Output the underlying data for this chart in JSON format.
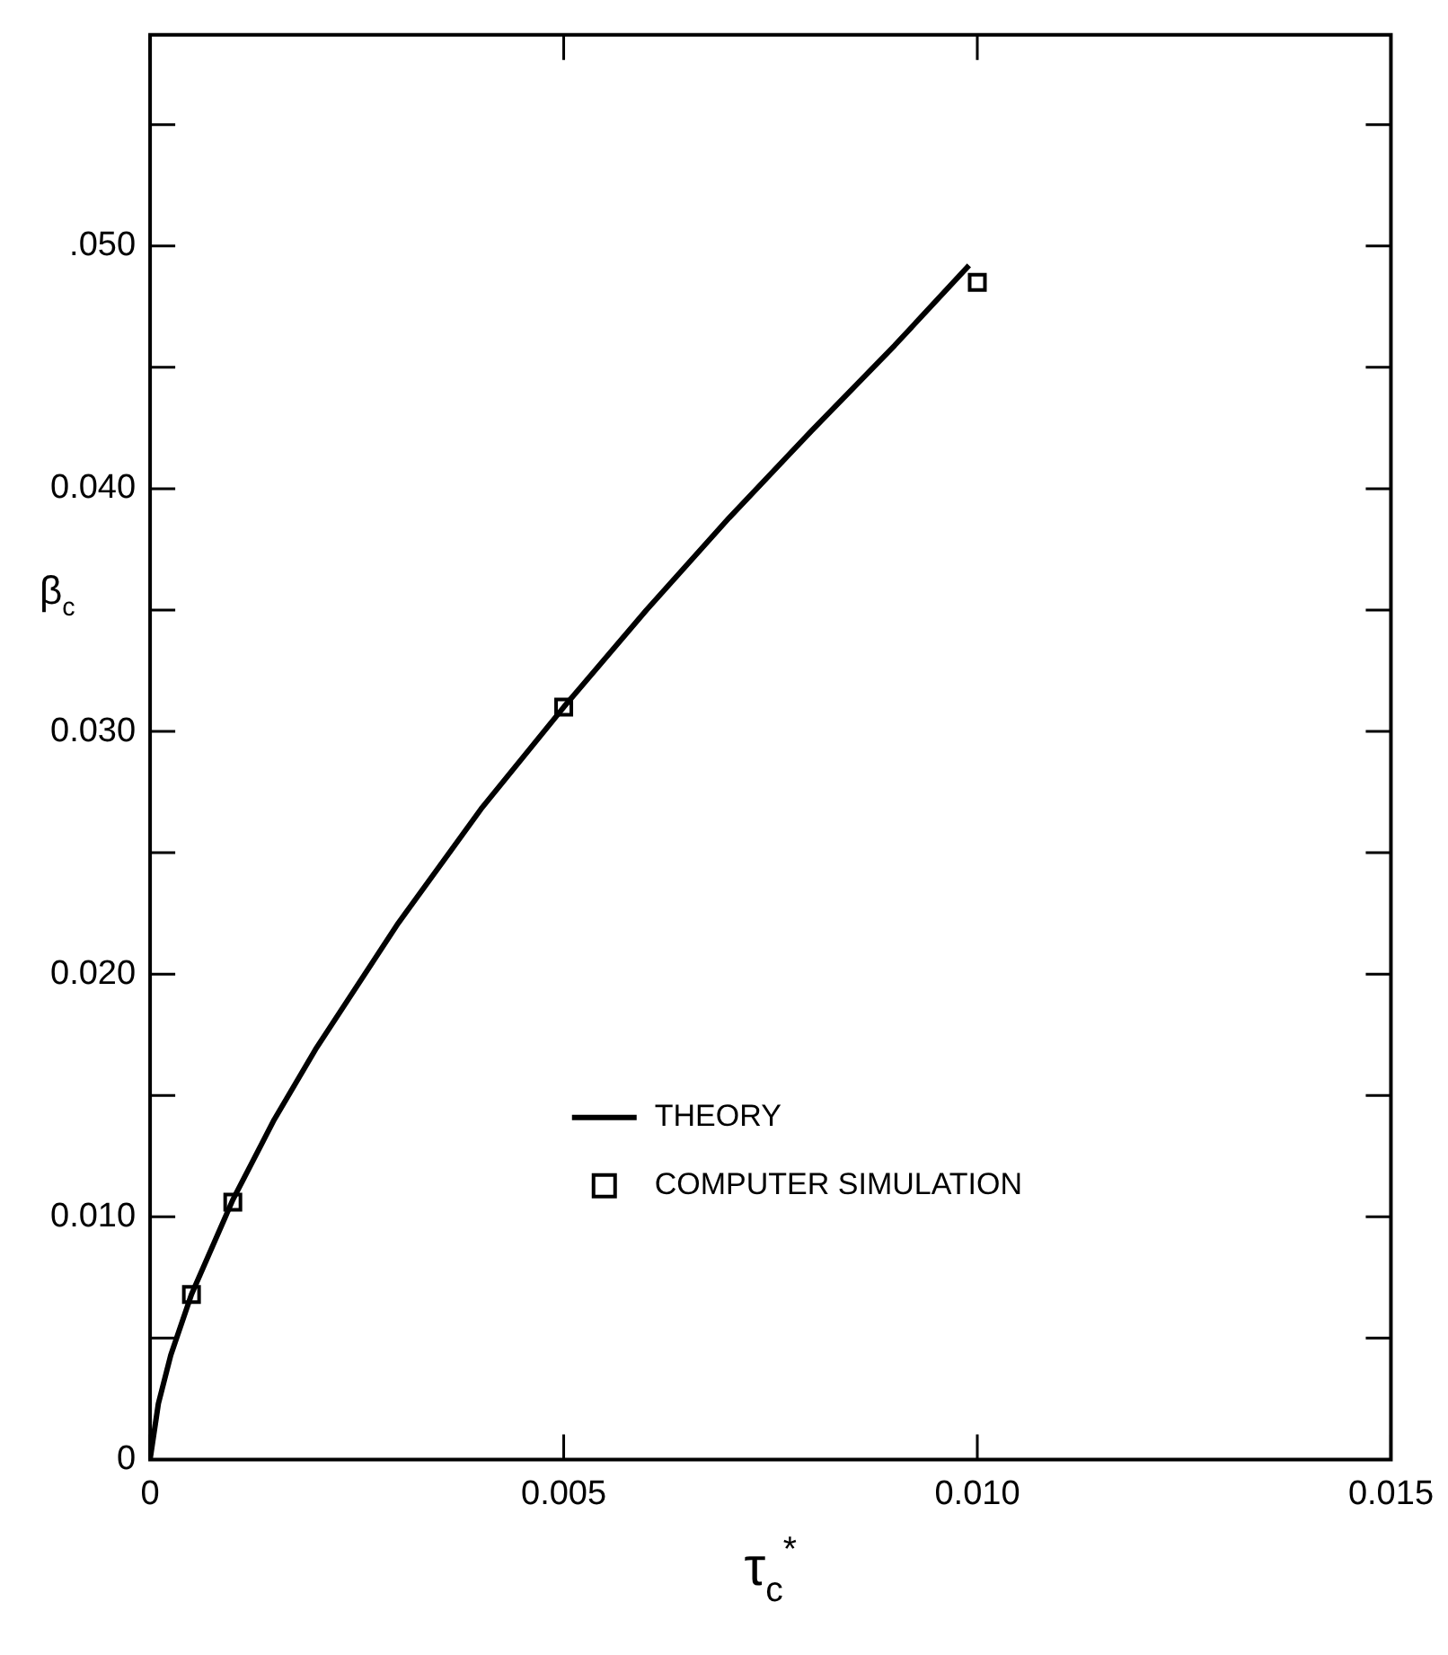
{
  "chart_data": {
    "type": "line",
    "xlabel": "τ$_{c}$$^{*}$",
    "ylabel": "β$_{c}$",
    "xlim": [
      0,
      0.015
    ],
    "ylim": [
      0,
      0.0587
    ],
    "xticks": [
      0,
      {
        "value": 0.005,
        "label": "0.005"
      },
      {
        "value": 0.01,
        "label": "0.010"
      },
      {
        "value": 0.015,
        "label": "0.015"
      }
    ],
    "yticks": [
      0,
      {
        "value": 0.005,
        "label": null
      },
      {
        "value": 0.01,
        "label": "0.010"
      },
      {
        "value": 0.015,
        "label": null
      },
      {
        "value": 0.02,
        "label": "0.020"
      },
      {
        "value": 0.025,
        "label": null
      },
      {
        "value": 0.03,
        "label": "0.030"
      },
      {
        "value": 0.035,
        "label": null
      },
      {
        "value": 0.04,
        "label": "0.040"
      },
      {
        "value": 0.045,
        "label": null
      },
      {
        "value": 0.05,
        "label": ".050"
      },
      {
        "value": 0.055,
        "label": null
      }
    ],
    "grid": false,
    "legend": "bottom right",
    "line_style": "solid",
    "series": [
      {
        "name": "THEORY",
        "color": "#000000",
        "marker": "none",
        "x": [
          0,
          0.0001,
          0.00025,
          0.0005,
          0.001,
          0.0015,
          0.002,
          0.003,
          0.004,
          0.005,
          0.006,
          0.007,
          0.008,
          0.009,
          0.0099
        ],
        "values": [
          0,
          0.0023,
          0.0043,
          0.0068,
          0.0107,
          0.014,
          0.0169,
          0.0221,
          0.0268,
          0.031,
          0.035,
          0.0388,
          0.0424,
          0.0459,
          0.0492
        ]
      },
      {
        "name": "COMPUTER SIMULATION",
        "type": "scatter",
        "color": "#000000",
        "marker": "square",
        "x": [
          0.0005,
          0.001,
          0.005,
          0.01
        ],
        "values": [
          0.0068,
          0.0106,
          0.031,
          0.0485
        ]
      }
    ]
  }
}
